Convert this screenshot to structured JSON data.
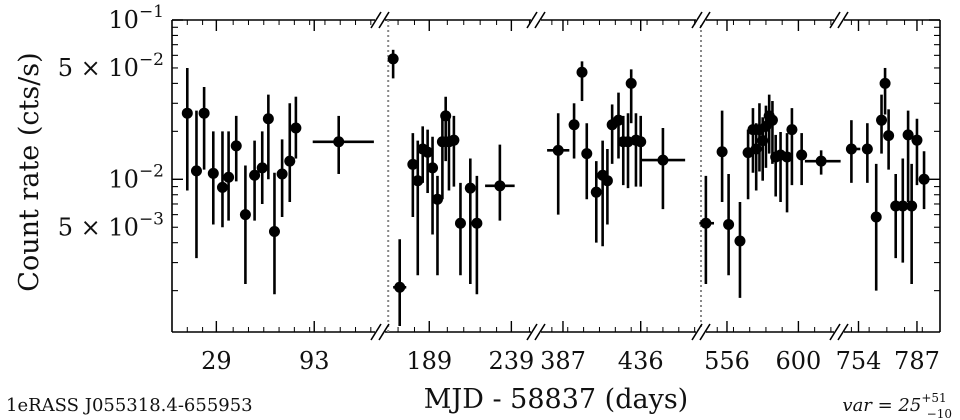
{
  "chart_data": {
    "type": "scatter",
    "title": "",
    "source_label": "1eRASS J055318.4-655953",
    "variability_label": {
      "prefix": "var = 25",
      "upper": "+51",
      "lower": "−10"
    },
    "ylabel": "Count rate (cts/s)",
    "xlabel": "MJD - 58837 (days)",
    "y_scale": "log",
    "ylim": [
      0.0011,
      0.1
    ],
    "y_ticks": [
      {
        "label": "10−1",
        "value": 0.1
      },
      {
        "label": "5 × 10−2",
        "value": 0.05
      },
      {
        "label": "10−2",
        "value": 0.01
      },
      {
        "label": "5 × 10−3",
        "value": 0.005
      }
    ],
    "axis_break_marker": "//",
    "vertical_reference_days": [
      164,
      540
    ],
    "segments": [
      {
        "xlim": [
          0,
          136
        ],
        "ticks": [
          {
            "label": "29",
            "value": 29
          },
          {
            "label": "93",
            "value": 93
          }
        ],
        "points": [
          {
            "x": 10,
            "y": 0.026,
            "ylo": 0.0085,
            "yhi": 0.05
          },
          {
            "x": 16,
            "y": 0.0113,
            "ylo": 0.0032,
            "yhi": 0.027
          },
          {
            "x": 21,
            "y": 0.026,
            "ylo": 0.0115,
            "yhi": 0.038
          },
          {
            "x": 27,
            "y": 0.0109,
            "ylo": 0.0052,
            "yhi": 0.02
          },
          {
            "x": 33,
            "y": 0.0089,
            "ylo": 0.005,
            "yhi": 0.02
          },
          {
            "x": 37,
            "y": 0.0103,
            "ylo": 0.0055,
            "yhi": 0.02
          },
          {
            "x": 42,
            "y": 0.0162,
            "ylo": 0.0097,
            "yhi": 0.025
          },
          {
            "x": 48,
            "y": 0.006,
            "ylo": 0.0022,
            "yhi": 0.0122
          },
          {
            "x": 54,
            "y": 0.0106,
            "ylo": 0.0055,
            "yhi": 0.0175
          },
          {
            "x": 59,
            "y": 0.0118,
            "ylo": 0.007,
            "yhi": 0.02
          },
          {
            "x": 63,
            "y": 0.024,
            "ylo": 0.01,
            "yhi": 0.034
          },
          {
            "x": 67,
            "y": 0.0047,
            "ylo": 0.0019,
            "yhi": 0.011
          },
          {
            "x": 72,
            "y": 0.0108,
            "ylo": 0.0058,
            "yhi": 0.0178
          },
          {
            "x": 77,
            "y": 0.013,
            "ylo": 0.0072,
            "yhi": 0.03
          },
          {
            "x": 81,
            "y": 0.021,
            "ylo": 0.0135,
            "yhi": 0.033,
            "xlo": 79,
            "xhi": 84
          },
          {
            "x": 109,
            "y": 0.0172,
            "ylo": 0.0108,
            "yhi": 0.025,
            "xlo": 92,
            "xhi": 132
          }
        ]
      },
      {
        "xlim": [
          159,
          254
        ],
        "ticks": [
          {
            "label": "189",
            "value": 189
          },
          {
            "label": "239",
            "value": 239
          }
        ],
        "points": [
          {
            "x": 167,
            "y": 0.057,
            "ylo": 0.043,
            "yhi": 0.065
          },
          {
            "x": 171,
            "y": 0.0021,
            "ylo": 0.0012,
            "yhi": 0.0042,
            "xlo": 167,
            "xhi": 175
          },
          {
            "x": 179,
            "y": 0.0124,
            "ylo": 0.0058,
            "yhi": 0.0195
          },
          {
            "x": 182,
            "y": 0.0098,
            "ylo": 0.0025,
            "yhi": 0.0175
          },
          {
            "x": 185,
            "y": 0.0155,
            "ylo": 0.0095,
            "yhi": 0.0215
          },
          {
            "x": 188,
            "y": 0.0148,
            "ylo": 0.0082,
            "yhi": 0.0205
          },
          {
            "x": 191,
            "y": 0.0118,
            "ylo": 0.0045,
            "yhi": 0.0185
          },
          {
            "x": 194,
            "y": 0.0075,
            "ylo": 0.0025,
            "yhi": 0.0105
          },
          {
            "x": 197,
            "y": 0.0172,
            "ylo": 0.0075,
            "yhi": 0.026
          },
          {
            "x": 199,
            "y": 0.025,
            "ylo": 0.013,
            "yhi": 0.033
          },
          {
            "x": 201,
            "y": 0.0172,
            "ylo": 0.0085,
            "yhi": 0.0255
          },
          {
            "x": 204,
            "y": 0.0176,
            "ylo": 0.009,
            "yhi": 0.025
          },
          {
            "x": 208,
            "y": 0.0053,
            "ylo": 0.0025,
            "yhi": 0.0095
          },
          {
            "x": 214,
            "y": 0.0088,
            "ylo": 0.0022,
            "yhi": 0.0135
          },
          {
            "x": 218,
            "y": 0.0053,
            "ylo": 0.0019,
            "yhi": 0.0105
          },
          {
            "x": 232,
            "y": 0.0091,
            "ylo": 0.0055,
            "yhi": 0.0165,
            "xlo": 223,
            "xhi": 241
          }
        ]
      },
      {
        "xlim": [
          370,
          474
        ],
        "ticks": [
          {
            "label": "387",
            "value": 387
          },
          {
            "label": "436",
            "value": 436
          }
        ],
        "points": [
          {
            "x": 384,
            "y": 0.0152,
            "ylo": 0.006,
            "yhi": 0.026,
            "xlo": 377,
            "xhi": 391
          },
          {
            "x": 394,
            "y": 0.022,
            "ylo": 0.0135,
            "yhi": 0.03
          },
          {
            "x": 399,
            "y": 0.047,
            "ylo": 0.031,
            "yhi": 0.055
          },
          {
            "x": 402,
            "y": 0.0145,
            "ylo": 0.0075,
            "yhi": 0.0225
          },
          {
            "x": 408,
            "y": 0.0083,
            "ylo": 0.004,
            "yhi": 0.013
          },
          {
            "x": 412,
            "y": 0.0106,
            "ylo": 0.0038,
            "yhi": 0.0175
          },
          {
            "x": 415,
            "y": 0.0098,
            "ylo": 0.0052,
            "yhi": 0.0155
          },
          {
            "x": 418,
            "y": 0.022,
            "ylo": 0.0125,
            "yhi": 0.0295
          },
          {
            "x": 422,
            "y": 0.0235,
            "ylo": 0.0135,
            "yhi": 0.035
          },
          {
            "x": 425,
            "y": 0.0172,
            "ylo": 0.0092,
            "yhi": 0.025
          },
          {
            "x": 428,
            "y": 0.0172,
            "ylo": 0.0088,
            "yhi": 0.026
          },
          {
            "x": 430,
            "y": 0.04,
            "ylo": 0.0225,
            "yhi": 0.049
          },
          {
            "x": 433,
            "y": 0.0176,
            "ylo": 0.009,
            "yhi": 0.026
          },
          {
            "x": 436,
            "y": 0.0172,
            "ylo": 0.009,
            "yhi": 0.025
          },
          {
            "x": 450,
            "y": 0.0132,
            "ylo": 0.0065,
            "yhi": 0.021,
            "xlo": 436,
            "xhi": 464
          }
        ]
      },
      {
        "xlim": [
          540,
          625
        ],
        "ticks": [
          {
            "label": "556",
            "value": 556
          },
          {
            "label": "600",
            "value": 600
          }
        ],
        "points": [
          {
            "x": 543,
            "y": 0.0053,
            "ylo": 0.0022,
            "yhi": 0.0105,
            "xlo": 539,
            "xhi": 548
          },
          {
            "x": 553,
            "y": 0.0149,
            "ylo": 0.0072,
            "yhi": 0.027
          },
          {
            "x": 557,
            "y": 0.0052,
            "ylo": 0.0025,
            "yhi": 0.0108
          },
          {
            "x": 564,
            "y": 0.0041,
            "ylo": 0.0018,
            "yhi": 0.0072
          },
          {
            "x": 569,
            "y": 0.0147,
            "ylo": 0.0075,
            "yhi": 0.0205
          },
          {
            "x": 572,
            "y": 0.0205,
            "ylo": 0.011,
            "yhi": 0.028
          },
          {
            "x": 574,
            "y": 0.0155,
            "ylo": 0.0085,
            "yhi": 0.0225
          },
          {
            "x": 576,
            "y": 0.0205,
            "ylo": 0.0112,
            "yhi": 0.03
          },
          {
            "x": 578,
            "y": 0.0175,
            "ylo": 0.0098,
            "yhi": 0.0245
          },
          {
            "x": 580,
            "y": 0.0215,
            "ylo": 0.0118,
            "yhi": 0.029
          },
          {
            "x": 582,
            "y": 0.025,
            "ylo": 0.0145,
            "yhi": 0.034
          },
          {
            "x": 584,
            "y": 0.0235,
            "ylo": 0.0125,
            "yhi": 0.031
          },
          {
            "x": 586,
            "y": 0.0138,
            "ylo": 0.0078,
            "yhi": 0.019
          },
          {
            "x": 589,
            "y": 0.0142,
            "ylo": 0.0072,
            "yhi": 0.0198
          },
          {
            "x": 593,
            "y": 0.0138,
            "ylo": 0.0062,
            "yhi": 0.0195
          },
          {
            "x": 596,
            "y": 0.0205,
            "ylo": 0.0092,
            "yhi": 0.028
          },
          {
            "x": 602,
            "y": 0.0142,
            "ylo": 0.0092,
            "yhi": 0.0195
          },
          {
            "x": 614,
            "y": 0.013,
            "ylo": 0.0107,
            "yhi": 0.0152,
            "xlo": 604,
            "xhi": 626
          }
        ]
      },
      {
        "xlim": [
          743,
          800
        ],
        "ticks": [
          {
            "label": "754",
            "value": 754
          },
          {
            "label": "787",
            "value": 787
          }
        ],
        "points": [
          {
            "x": 750,
            "y": 0.0155,
            "ylo": 0.0095,
            "yhi": 0.0235,
            "xlo": 747,
            "xhi": 755
          },
          {
            "x": 759,
            "y": 0.0155,
            "ylo": 0.0095,
            "yhi": 0.0225
          },
          {
            "x": 764,
            "y": 0.0058,
            "ylo": 0.002,
            "yhi": 0.0125
          },
          {
            "x": 767,
            "y": 0.0235,
            "ylo": 0.0145,
            "yhi": 0.034
          },
          {
            "x": 769,
            "y": 0.04,
            "ylo": 0.0255,
            "yhi": 0.05
          },
          {
            "x": 771,
            "y": 0.0188,
            "ylo": 0.0115,
            "yhi": 0.0275
          },
          {
            "x": 775,
            "y": 0.0068,
            "ylo": 0.0032,
            "yhi": 0.0108
          },
          {
            "x": 779,
            "y": 0.0068,
            "ylo": 0.003,
            "yhi": 0.0135
          },
          {
            "x": 782,
            "y": 0.019,
            "ylo": 0.0072,
            "yhi": 0.027
          },
          {
            "x": 784,
            "y": 0.0068,
            "ylo": 0.0022,
            "yhi": 0.0125
          },
          {
            "x": 787,
            "y": 0.0176,
            "ylo": 0.0092,
            "yhi": 0.024
          },
          {
            "x": 791,
            "y": 0.01,
            "ylo": 0.0065,
            "yhi": 0.015,
            "xlo": 790,
            "xhi": 794
          }
        ]
      }
    ]
  }
}
